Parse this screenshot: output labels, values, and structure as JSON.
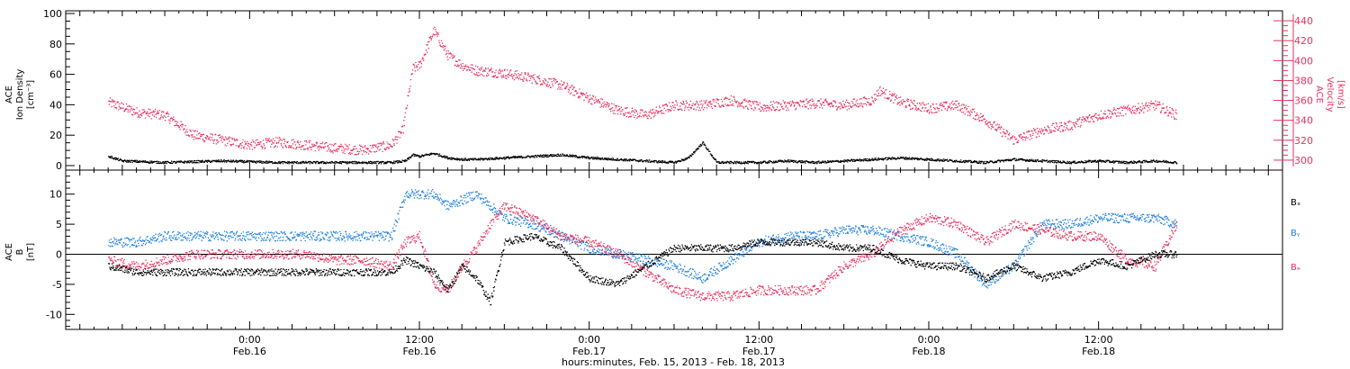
{
  "chart_data": [
    {
      "type": "scatter",
      "ylabel_left_lines": [
        "ACE",
        "Ion Density",
        "[cm⁻³]"
      ],
      "ylabel_right_lines": [
        "ACE",
        "Velocity",
        "[km/s]"
      ],
      "ylim_left": [
        0,
        100
      ],
      "ylim_right": [
        290,
        450
      ],
      "yticks_left": [
        "0",
        "20",
        "40",
        "60",
        "80",
        "100"
      ],
      "yticks_right": [
        "300",
        "320",
        "340",
        "360",
        "380",
        "400",
        "420",
        "440"
      ],
      "series": [
        {
          "axis": "right",
          "color": "#e8325f",
          "x": [
            -10,
            -8,
            -6,
            -4,
            -2,
            0,
            2,
            4,
            6,
            8,
            10,
            10.8,
            11.5,
            12,
            13,
            14,
            15,
            16,
            18,
            20,
            22,
            24,
            26,
            28,
            30,
            32,
            34,
            36,
            38,
            40,
            42,
            44,
            44.5,
            46,
            48,
            50,
            52,
            54,
            56,
            58,
            60,
            62,
            64,
            65.5
          ],
          "values": [
            358,
            348,
            345,
            325,
            320,
            315,
            318,
            315,
            312,
            310,
            315,
            330,
            392,
            395,
            430,
            405,
            395,
            390,
            387,
            382,
            375,
            362,
            350,
            345,
            355,
            355,
            360,
            353,
            355,
            357,
            355,
            360,
            370,
            358,
            352,
            355,
            340,
            320,
            330,
            335,
            345,
            350,
            355,
            345
          ]
        },
        {
          "axis": "left",
          "color": "#000000",
          "x": [
            -10,
            -9,
            -6,
            -2,
            2,
            6,
            10,
            11,
            11.5,
            12,
            13,
            14,
            15,
            16,
            18,
            20,
            22,
            24,
            26,
            28,
            30,
            31,
            32,
            33,
            34,
            36,
            38,
            40,
            42,
            44,
            46,
            48,
            50,
            52,
            54,
            56,
            58,
            60,
            62,
            64,
            65.5
          ],
          "values": [
            6,
            3,
            2,
            3,
            2,
            2,
            2,
            3,
            7,
            6,
            8,
            5,
            4,
            4,
            5,
            6,
            7,
            5,
            4,
            3,
            2,
            5,
            15,
            2,
            2,
            2,
            3,
            2,
            3,
            4,
            5,
            4,
            3,
            2,
            4,
            3,
            2,
            3,
            2,
            3,
            2
          ]
        }
      ]
    },
    {
      "type": "scatter",
      "ylabel_lines": [
        "ACE",
        "B",
        "[nT]"
      ],
      "ylim": [
        -12.5,
        14
      ],
      "yticks": [
        "-10",
        "-5",
        "0",
        "5",
        "10"
      ],
      "series": [
        {
          "name": "Bx",
          "color": "#000000",
          "x": [
            -10,
            -8,
            -6,
            -4,
            -2,
            0,
            2,
            4,
            6,
            8,
            10,
            11,
            12,
            13,
            14,
            15,
            16,
            17,
            18,
            20,
            22,
            24,
            26,
            28,
            30,
            32,
            34,
            36,
            38,
            40,
            42,
            44,
            46,
            48,
            50,
            52,
            54,
            56,
            58,
            60,
            62,
            64,
            65.5
          ],
          "values": [
            -2,
            -3,
            -3,
            -3,
            -3,
            -3,
            -3,
            -3,
            -3,
            -3,
            -3,
            -1,
            -2,
            -3,
            -6,
            -2,
            -4,
            -8,
            2,
            3,
            1,
            -4,
            -5,
            -2,
            1,
            1,
            1,
            2,
            2,
            2,
            1,
            1,
            -1,
            -2,
            -2,
            -4,
            -2,
            -4,
            -3,
            -1,
            -2,
            0,
            0
          ]
        },
        {
          "name": "By",
          "color": "#1e7fe0",
          "x": [
            -10,
            -8,
            -6,
            -4,
            -2,
            0,
            2,
            4,
            6,
            8,
            10,
            11,
            12,
            13,
            14,
            15,
            16,
            17,
            18,
            20,
            22,
            24,
            26,
            28,
            30,
            32,
            34,
            36,
            38,
            40,
            42,
            44,
            46,
            48,
            50,
            52,
            54,
            56,
            58,
            60,
            62,
            64,
            65.5
          ],
          "values": [
            2,
            2,
            3,
            3,
            3,
            3,
            3,
            3,
            3,
            3,
            3,
            10,
            10,
            10,
            8,
            9,
            10,
            8,
            6,
            5,
            3,
            1,
            0,
            -1,
            -2,
            -4,
            -1,
            2,
            3,
            3,
            4,
            4,
            3,
            2,
            0,
            -5,
            -2,
            5,
            5,
            6,
            6,
            6,
            5
          ]
        },
        {
          "name": "Bz",
          "color": "#e8325f",
          "x": [
            -10,
            -8,
            -6,
            -4,
            -2,
            0,
            2,
            4,
            6,
            8,
            10,
            11,
            12,
            13,
            14,
            15,
            16,
            17,
            18,
            20,
            22,
            24,
            26,
            28,
            30,
            32,
            34,
            36,
            38,
            40,
            42,
            44,
            46,
            48,
            50,
            52,
            54,
            56,
            58,
            60,
            62,
            64,
            65.5
          ],
          "values": [
            -1,
            -2,
            -1,
            0,
            0,
            0,
            0,
            0,
            -1,
            -1,
            -2,
            2,
            3,
            -5,
            -6,
            -2,
            1,
            5,
            8,
            6,
            3,
            2,
            0,
            -3,
            -6,
            -7,
            -7,
            -6,
            -6,
            -6,
            -2,
            0,
            4,
            6,
            5,
            2,
            5,
            4,
            3,
            3,
            -1,
            -2,
            5
          ]
        }
      ],
      "legend": [
        "Bₓ",
        "Bᵧ",
        "Bₔ"
      ]
    }
  ],
  "x_axis": {
    "xlim": [
      -13,
      73
    ],
    "tick_time_labels": [
      "0:00",
      "12:00",
      "0:00",
      "12:00",
      "0:00",
      "12:00"
    ],
    "tick_date_labels": [
      "Feb.16",
      "Feb.16",
      "Feb.17",
      "Feb.17",
      "Feb.18",
      "Feb.18"
    ],
    "tick_hours": [
      0,
      12,
      24,
      36,
      48,
      60
    ],
    "title": "hours:minutes, Feb. 15, 2013 - Feb. 18, 2013"
  },
  "colors": {
    "ion_density": "#000000",
    "velocity": "#e8325f",
    "bx": "#000000",
    "by": "#1e7fe0",
    "bz": "#e8325f",
    "zero_line": "#000000"
  }
}
